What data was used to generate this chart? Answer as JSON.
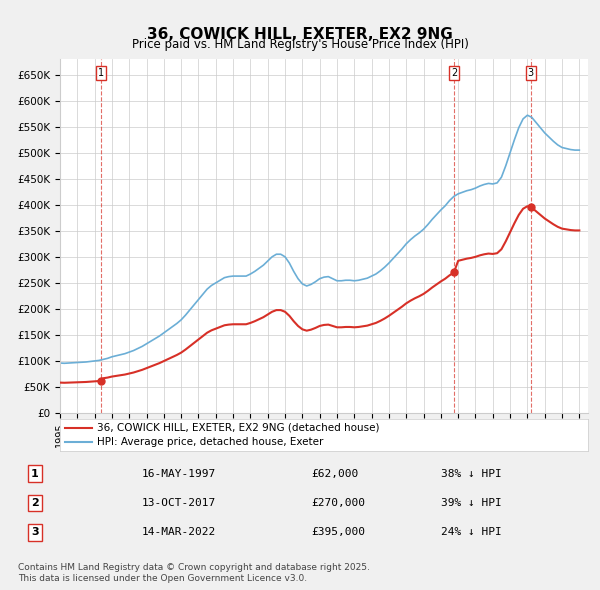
{
  "title": "36, COWICK HILL, EXETER, EX2 9NG",
  "subtitle": "Price paid vs. HM Land Registry's House Price Index (HPI)",
  "hpi_color": "#6baed6",
  "price_color": "#d73027",
  "vline_color": "#d73027",
  "bg_color": "#f0f0f0",
  "plot_bg": "#ffffff",
  "grid_color": "#cccccc",
  "ylim": [
    0,
    680000
  ],
  "yticks": [
    0,
    50000,
    100000,
    150000,
    200000,
    250000,
    300000,
    350000,
    400000,
    450000,
    500000,
    550000,
    600000,
    650000
  ],
  "ytick_labels": [
    "£0",
    "£50K",
    "£100K",
    "£150K",
    "£200K",
    "£250K",
    "£300K",
    "£350K",
    "£400K",
    "£450K",
    "£500K",
    "£550K",
    "£600K",
    "£650K"
  ],
  "xlim_start": 1995.0,
  "xlim_end": 2025.5,
  "sale_dates": [
    1997.37,
    2017.78,
    2022.2
  ],
  "sale_prices": [
    62000,
    270000,
    395000
  ],
  "sale_labels": [
    "1",
    "2",
    "3"
  ],
  "legend_entries": [
    "36, COWICK HILL, EXETER, EX2 9NG (detached house)",
    "HPI: Average price, detached house, Exeter"
  ],
  "table_rows": [
    [
      "1",
      "16-MAY-1997",
      "£62,000",
      "38% ↓ HPI"
    ],
    [
      "2",
      "13-OCT-2017",
      "£270,000",
      "39% ↓ HPI"
    ],
    [
      "3",
      "14-MAR-2022",
      "£395,000",
      "24% ↓ HPI"
    ]
  ],
  "footnote": "Contains HM Land Registry data © Crown copyright and database right 2025.\nThis data is licensed under the Open Government Licence v3.0.",
  "hpi_x": [
    1995.0,
    1995.25,
    1995.5,
    1995.75,
    1996.0,
    1996.25,
    1996.5,
    1996.75,
    1997.0,
    1997.25,
    1997.5,
    1997.75,
    1998.0,
    1998.25,
    1998.5,
    1998.75,
    1999.0,
    1999.25,
    1999.5,
    1999.75,
    2000.0,
    2000.25,
    2000.5,
    2000.75,
    2001.0,
    2001.25,
    2001.5,
    2001.75,
    2002.0,
    2002.25,
    2002.5,
    2002.75,
    2003.0,
    2003.25,
    2003.5,
    2003.75,
    2004.0,
    2004.25,
    2004.5,
    2004.75,
    2005.0,
    2005.25,
    2005.5,
    2005.75,
    2006.0,
    2006.25,
    2006.5,
    2006.75,
    2007.0,
    2007.25,
    2007.5,
    2007.75,
    2008.0,
    2008.25,
    2008.5,
    2008.75,
    2009.0,
    2009.25,
    2009.5,
    2009.75,
    2010.0,
    2010.25,
    2010.5,
    2010.75,
    2011.0,
    2011.25,
    2011.5,
    2011.75,
    2012.0,
    2012.25,
    2012.5,
    2012.75,
    2013.0,
    2013.25,
    2013.5,
    2013.75,
    2014.0,
    2014.25,
    2014.5,
    2014.75,
    2015.0,
    2015.25,
    2015.5,
    2015.75,
    2016.0,
    2016.25,
    2016.5,
    2016.75,
    2017.0,
    2017.25,
    2017.5,
    2017.75,
    2018.0,
    2018.25,
    2018.5,
    2018.75,
    2019.0,
    2019.25,
    2019.5,
    2019.75,
    2020.0,
    2020.25,
    2020.5,
    2020.75,
    2021.0,
    2021.25,
    2021.5,
    2021.75,
    2022.0,
    2022.25,
    2022.5,
    2022.75,
    2023.0,
    2023.25,
    2023.5,
    2023.75,
    2024.0,
    2024.25,
    2024.5,
    2024.75,
    2025.0
  ],
  "hpi_y": [
    96000,
    95500,
    96000,
    96500,
    97000,
    97500,
    98000,
    99000,
    100000,
    101000,
    103000,
    105000,
    108000,
    110000,
    112000,
    114000,
    117000,
    120000,
    124000,
    128000,
    133000,
    138000,
    143000,
    148000,
    154000,
    160000,
    166000,
    172000,
    179000,
    188000,
    198000,
    208000,
    218000,
    228000,
    238000,
    245000,
    250000,
    255000,
    260000,
    262000,
    263000,
    263000,
    263000,
    263000,
    267000,
    272000,
    278000,
    284000,
    292000,
    300000,
    305000,
    305000,
    300000,
    288000,
    272000,
    258000,
    248000,
    244000,
    247000,
    252000,
    258000,
    261000,
    262000,
    258000,
    254000,
    254000,
    255000,
    255000,
    254000,
    255000,
    257000,
    259000,
    263000,
    267000,
    273000,
    280000,
    288000,
    297000,
    306000,
    315000,
    325000,
    333000,
    340000,
    346000,
    353000,
    362000,
    372000,
    381000,
    390000,
    398000,
    408000,
    416000,
    421000,
    424000,
    427000,
    429000,
    432000,
    436000,
    439000,
    441000,
    440000,
    442000,
    453000,
    475000,
    500000,
    525000,
    548000,
    565000,
    572000,
    568000,
    558000,
    548000,
    538000,
    530000,
    522000,
    515000,
    510000,
    508000,
    506000,
    505000,
    505000
  ]
}
